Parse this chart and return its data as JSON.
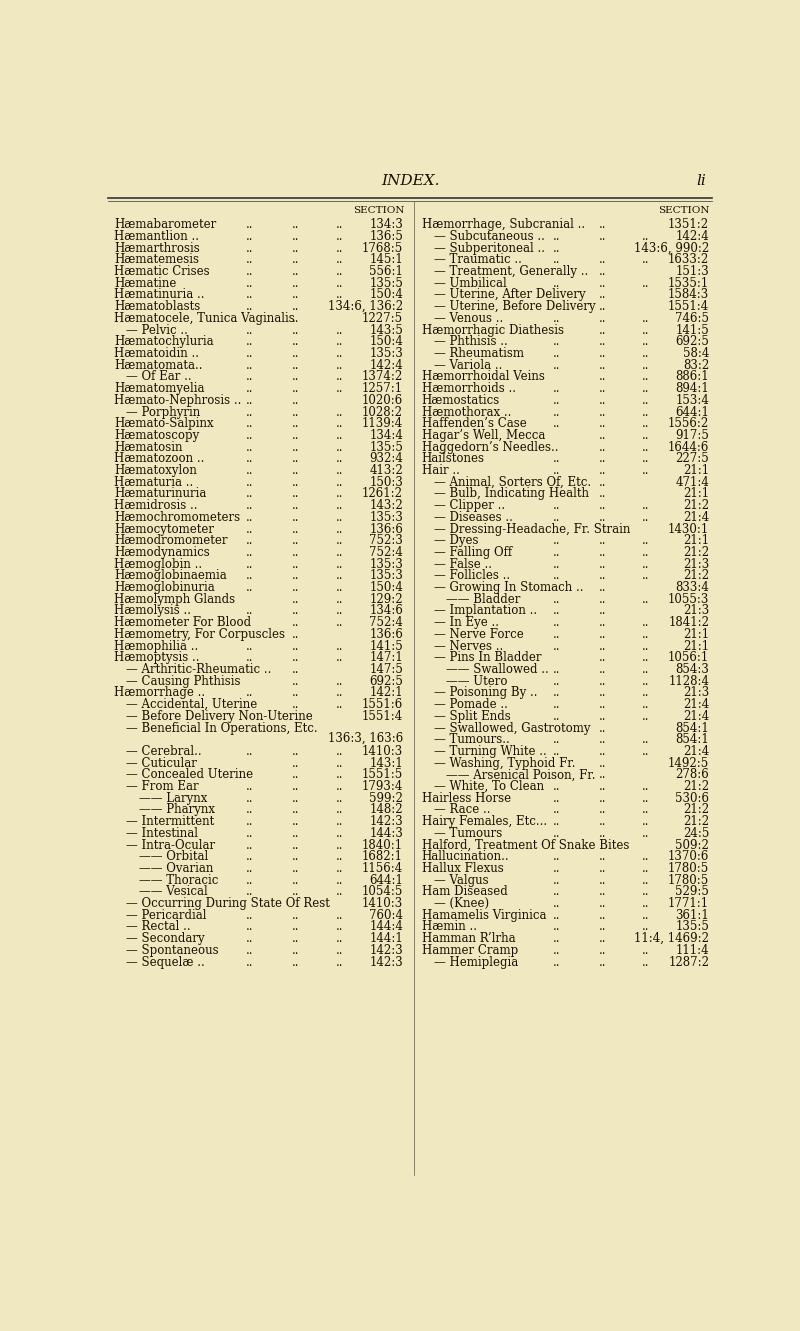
{
  "bg_color": "#f0e8c0",
  "text_color": "#1a1000",
  "title": "INDEX.",
  "page_num": "li",
  "section_header": "SECTION",
  "left_entries": [
    {
      "label": "Hæmabarometer",
      "dots": [
        1,
        2,
        3
      ],
      "page": "134:3",
      "indent": 0
    },
    {
      "label": "Hæmantlion ..",
      "dots": [
        1,
        2,
        3
      ],
      "page": "136:5",
      "indent": 0
    },
    {
      "label": "Hæmarthrosis",
      "dots": [
        1,
        2,
        3
      ],
      "page": "1768:5",
      "indent": 0
    },
    {
      "label": "Hæmatemesis",
      "dots": [
        1,
        2,
        3
      ],
      "page": "145:1",
      "indent": 0
    },
    {
      "label": "Hæmatic Crises",
      "dots": [
        1,
        2,
        3
      ],
      "page": "556:1",
      "indent": 0
    },
    {
      "label": "Hæmatine",
      "dots": [
        1,
        2,
        3
      ],
      "page": "135:5",
      "indent": 0
    },
    {
      "label": "Hæmatinuria ..",
      "dots": [
        1,
        2,
        3
      ],
      "page": "150:4",
      "indent": 0
    },
    {
      "label": "Hæmatoblasts",
      "dots": [
        1,
        2
      ],
      "page": "134:6, 136:2",
      "indent": 0
    },
    {
      "label": "Hæmatocele, Tunica Vaginalis",
      "dots": [
        2
      ],
      "page": "1227:5",
      "indent": 0
    },
    {
      "label": "— Pelvic ..",
      "dots": [
        1,
        2,
        3
      ],
      "page": "143:5",
      "indent": 1
    },
    {
      "label": "Hæmatochyluria",
      "dots": [
        1,
        2,
        3
      ],
      "page": "150:4",
      "indent": 0
    },
    {
      "label": "Hæmatoidin ..",
      "dots": [
        1,
        2,
        3
      ],
      "page": "135:3",
      "indent": 0
    },
    {
      "label": "Hæmatomata..",
      "dots": [
        1,
        2,
        3
      ],
      "page": "142:4",
      "indent": 0
    },
    {
      "label": "— Of Ear ..",
      "dots": [
        1,
        2,
        3
      ],
      "page": "1374:2",
      "indent": 1
    },
    {
      "label": "Hæmatomyelia",
      "dots": [
        1,
        2,
        3
      ],
      "page": "1257:1",
      "indent": 0
    },
    {
      "label": "Hæmato-Nephrosis ..",
      "dots": [
        1,
        2
      ],
      "page": "1020:6",
      "indent": 0
    },
    {
      "label": "— Porphyrin",
      "dots": [
        1,
        2,
        3
      ],
      "page": "1028:2",
      "indent": 1
    },
    {
      "label": "Hæmato-Salpinx",
      "dots": [
        1,
        2,
        3
      ],
      "page": "1139:4",
      "indent": 0
    },
    {
      "label": "Hæmatoscopy",
      "dots": [
        1,
        2,
        3
      ],
      "page": "134:4",
      "indent": 0
    },
    {
      "label": "Hæmatosin",
      "dots": [
        1,
        2,
        3
      ],
      "page": "135:5",
      "indent": 0
    },
    {
      "label": "Hæmatozoon ..",
      "dots": [
        1,
        2,
        3
      ],
      "page": "932:4",
      "indent": 0
    },
    {
      "label": "Hæmatoxylon",
      "dots": [
        1,
        2,
        3
      ],
      "page": "413:2",
      "indent": 0
    },
    {
      "label": "Hæmaturia ..",
      "dots": [
        1,
        2,
        3
      ],
      "page": "150:3",
      "indent": 0
    },
    {
      "label": "Hæmaturinuria",
      "dots": [
        1,
        2,
        3
      ],
      "page": "1261:2",
      "indent": 0
    },
    {
      "label": "Hæmidrosis ..",
      "dots": [
        1,
        2,
        3
      ],
      "page": "143:2",
      "indent": 0
    },
    {
      "label": "Hæmochromometers",
      "dots": [
        1,
        2,
        3
      ],
      "page": "135:3",
      "indent": 0
    },
    {
      "label": "Hæmocytometer",
      "dots": [
        1,
        2,
        3
      ],
      "page": "136:6",
      "indent": 0
    },
    {
      "label": "Hæmodromometer",
      "dots": [
        1,
        2,
        3
      ],
      "page": "752:3",
      "indent": 0
    },
    {
      "label": "Hæmodynamics",
      "dots": [
        1,
        2,
        3
      ],
      "page": "752:4",
      "indent": 0
    },
    {
      "label": "Hæmoglobin ..",
      "dots": [
        1,
        2,
        3
      ],
      "page": "135:3",
      "indent": 0
    },
    {
      "label": "Hæmoglobinaemia",
      "dots": [
        1,
        2,
        3
      ],
      "page": "135:3",
      "indent": 0
    },
    {
      "label": "Hæmoglobinuria",
      "dots": [
        1,
        2,
        3
      ],
      "page": "150:4",
      "indent": 0
    },
    {
      "label": "Hæmolymph Glands",
      "dots": [
        2,
        3
      ],
      "page": "129:2",
      "indent": 0
    },
    {
      "label": "Hæmolysis ..",
      "dots": [
        1,
        2,
        3
      ],
      "page": "134:6",
      "indent": 0
    },
    {
      "label": "Hæmometer For Blood",
      "dots": [
        2,
        3
      ],
      "page": "752:4",
      "indent": 0
    },
    {
      "label": "Hæmometry, For Corpuscles",
      "dots": [
        2
      ],
      "page": "136:6",
      "indent": 0
    },
    {
      "label": "Hæmophilia ..",
      "dots": [
        1,
        2,
        3
      ],
      "page": "141:5",
      "indent": 0
    },
    {
      "label": "Hæmoptysis ..",
      "dots": [
        1,
        2,
        3
      ],
      "page": "147:1",
      "indent": 0
    },
    {
      "label": "— Arthritic-Rheumatic ..",
      "dots": [
        2
      ],
      "page": "147:5",
      "indent": 1
    },
    {
      "label": "— Causing Phthisis",
      "dots": [
        2,
        3
      ],
      "page": "692:5",
      "indent": 1
    },
    {
      "label": "Hæmorrhage ..",
      "dots": [
        1,
        2,
        3
      ],
      "page": "142:1",
      "indent": 0
    },
    {
      "label": "— Accidental, Uterine",
      "dots": [
        2,
        3
      ],
      "page": "1551:6",
      "indent": 1
    },
    {
      "label": "— Before Delivery Non-Uterine",
      "dots": [],
      "page": "1551:4",
      "indent": 1
    },
    {
      "label": "— Beneficial In Operations, Etc.",
      "dots": [],
      "page": "136:3, 163:6",
      "indent": 1,
      "page_newline": true
    },
    {
      "label": "— Cerebral..",
      "dots": [
        1,
        2,
        3
      ],
      "page": "1410:3",
      "indent": 1
    },
    {
      "label": "— Cuticular",
      "dots": [
        2,
        3
      ],
      "page": "143:1",
      "indent": 1
    },
    {
      "label": "— Concealed Uterine",
      "dots": [
        2,
        3
      ],
      "page": "1551:5",
      "indent": 1
    },
    {
      "label": "— From Ear",
      "dots": [
        1,
        2,
        3
      ],
      "page": "1793:4",
      "indent": 1
    },
    {
      "label": "—— Larynx",
      "dots": [
        1,
        2,
        3
      ],
      "page": "599:2",
      "indent": 2
    },
    {
      "label": "—— Pharynx",
      "dots": [
        1,
        2,
        3
      ],
      "page": "148:2",
      "indent": 2
    },
    {
      "label": "— Intermittent",
      "dots": [
        1,
        2,
        3
      ],
      "page": "142:3",
      "indent": 1
    },
    {
      "label": "— Intestinal",
      "dots": [
        1,
        2,
        3
      ],
      "page": "144:3",
      "indent": 1
    },
    {
      "label": "— Intra-Ocular",
      "dots": [
        1,
        2,
        3
      ],
      "page": "1840:1",
      "indent": 1
    },
    {
      "label": "—— Orbital",
      "dots": [
        1,
        2,
        3
      ],
      "page": "1682:1",
      "indent": 2
    },
    {
      "label": "—— Ovarian",
      "dots": [
        1,
        2,
        3
      ],
      "page": "1156:4",
      "indent": 2
    },
    {
      "label": "—— Thoracic",
      "dots": [
        1,
        2,
        3
      ],
      "page": "644:1",
      "indent": 2
    },
    {
      "label": "—— Vesical",
      "dots": [
        1,
        2,
        3
      ],
      "page": "1054:5",
      "indent": 2
    },
    {
      "label": "— Occurring During State Of Rest",
      "dots": [],
      "page": "1410:3",
      "indent": 1
    },
    {
      "label": "— Pericardial",
      "dots": [
        1,
        2,
        3
      ],
      "page": "760:4",
      "indent": 1
    },
    {
      "label": "— Rectal ..",
      "dots": [
        1,
        2,
        3
      ],
      "page": "144:4",
      "indent": 1
    },
    {
      "label": "— Secondary",
      "dots": [
        1,
        2,
        3
      ],
      "page": "144:1",
      "indent": 1
    },
    {
      "label": "— Spontaneous",
      "dots": [
        1,
        2,
        3
      ],
      "page": "142:3",
      "indent": 1
    },
    {
      "label": "— Sequelæ ..",
      "dots": [
        1,
        2,
        3
      ],
      "page": "142:3",
      "indent": 1
    }
  ],
  "right_entries": [
    {
      "label": "Hæmorrhage, Subcranial ..",
      "dots": [
        2
      ],
      "page": "1351:2",
      "indent": 0
    },
    {
      "label": "— Subcutaneous ..",
      "dots": [
        1,
        2,
        3
      ],
      "page": "142:4",
      "indent": 1
    },
    {
      "label": "— Subperitoneal ..",
      "dots": [
        1
      ],
      "page": "143:6, 990:2",
      "indent": 1
    },
    {
      "label": "— Traumatic ..",
      "dots": [
        1,
        2,
        3
      ],
      "page": "1633:2",
      "indent": 1
    },
    {
      "label": "— Treatment, Generally ..",
      "dots": [
        2
      ],
      "page": "151:3",
      "indent": 1
    },
    {
      "label": "— Umbilical",
      "dots": [
        1,
        2,
        3
      ],
      "page": "1535:1",
      "indent": 1
    },
    {
      "label": "— Uterine, After Delivery",
      "dots": [
        2
      ],
      "page": "1584:3",
      "indent": 1
    },
    {
      "label": "— Uterine, Before Delivery",
      "dots": [
        2
      ],
      "page": "1551:4",
      "indent": 1
    },
    {
      "label": "— Venous ..",
      "dots": [
        1,
        2,
        3
      ],
      "page": "746:5",
      "indent": 1
    },
    {
      "label": "Hæmorrhagic Diathesis",
      "dots": [
        2,
        3
      ],
      "page": "141:5",
      "indent": 0
    },
    {
      "label": "— Phthisis ..",
      "dots": [
        1,
        2,
        3
      ],
      "page": "692:5",
      "indent": 1
    },
    {
      "label": "— Rheumatism",
      "dots": [
        1,
        2,
        3
      ],
      "page": "58:4",
      "indent": 1
    },
    {
      "label": "— Variola ..",
      "dots": [
        1,
        2,
        3
      ],
      "page": "83:2",
      "indent": 1
    },
    {
      "label": "Hæmorrhoidal Veins",
      "dots": [
        2,
        3
      ],
      "page": "886:1",
      "indent": 0
    },
    {
      "label": "Hæmorrhoids ..",
      "dots": [
        1,
        2,
        3
      ],
      "page": "894:1",
      "indent": 0
    },
    {
      "label": "Hæmostatics",
      "dots": [
        1,
        2,
        3
      ],
      "page": "153:4",
      "indent": 0
    },
    {
      "label": "Hæmothorax ..",
      "dots": [
        1,
        2,
        3
      ],
      "page": "644:1",
      "indent": 0
    },
    {
      "label": "Haffenden’s Case",
      "dots": [
        1,
        2,
        3
      ],
      "page": "1556:2",
      "indent": 0
    },
    {
      "label": "Hagar’s Well, Mecca",
      "dots": [
        2,
        3
      ],
      "page": "917:5",
      "indent": 0
    },
    {
      "label": "Haggedorn’s Needles..",
      "dots": [
        2,
        3
      ],
      "page": "1644:6",
      "indent": 0
    },
    {
      "label": "Hailstones",
      "dots": [
        1,
        2,
        3
      ],
      "page": "227:5",
      "indent": 0
    },
    {
      "label": "Hair ..",
      "dots": [
        1,
        2,
        3
      ],
      "page": "21:1",
      "indent": 0
    },
    {
      "label": "— Animal, Sorters Of, Etc.",
      "dots": [
        2
      ],
      "page": "471:4",
      "indent": 1
    },
    {
      "label": "— Bulb, Indicating Health",
      "dots": [
        2
      ],
      "page": "21:1",
      "indent": 1
    },
    {
      "label": "— Clipper ..",
      "dots": [
        1,
        2,
        3
      ],
      "page": "21:2",
      "indent": 1
    },
    {
      "label": "— Diseases ..",
      "dots": [
        1,
        2,
        3
      ],
      "page": "21:4",
      "indent": 1
    },
    {
      "label": "— Dressing-Headache, Fr. Strain",
      "dots": [],
      "page": "1430:1",
      "indent": 1
    },
    {
      "label": "— Dyes",
      "dots": [
        1,
        2,
        3
      ],
      "page": "21:1",
      "indent": 1
    },
    {
      "label": "— Falling Off",
      "dots": [
        1,
        2,
        3
      ],
      "page": "21:2",
      "indent": 1
    },
    {
      "label": "— False ..",
      "dots": [
        1,
        2,
        3
      ],
      "page": "21:3",
      "indent": 1
    },
    {
      "label": "— Follicles ..",
      "dots": [
        1,
        2,
        3
      ],
      "page": "21:2",
      "indent": 1
    },
    {
      "label": "— Growing In Stomach ..",
      "dots": [
        2
      ],
      "page": "833:4",
      "indent": 1
    },
    {
      "label": "—— Bladder",
      "dots": [
        1,
        2,
        3
      ],
      "page": "1055:3",
      "indent": 2
    },
    {
      "label": "— Implantation ..",
      "dots": [
        1,
        2
      ],
      "page": "21:3",
      "indent": 1
    },
    {
      "label": "— In Eye ..",
      "dots": [
        1,
        2,
        3
      ],
      "page": "1841:2",
      "indent": 1
    },
    {
      "label": "— Nerve Force",
      "dots": [
        1,
        2,
        3
      ],
      "page": "21:1",
      "indent": 1
    },
    {
      "label": "— Nerves ..",
      "dots": [
        1,
        2,
        3
      ],
      "page": "21:1",
      "indent": 1
    },
    {
      "label": "— Pins In Bladder",
      "dots": [
        2,
        3
      ],
      "page": "1056:1",
      "indent": 1
    },
    {
      "label": "—— Swallowed ..",
      "dots": [
        1,
        2,
        3
      ],
      "page": "854:3",
      "indent": 2
    },
    {
      "label": "—— Utero",
      "dots": [
        1,
        2,
        3
      ],
      "page": "1128:4",
      "indent": 2
    },
    {
      "label": "— Poisoning By ..",
      "dots": [
        1,
        2,
        3
      ],
      "page": "21:3",
      "indent": 1
    },
    {
      "label": "— Pomade ..",
      "dots": [
        1,
        2,
        3
      ],
      "page": "21:4",
      "indent": 1
    },
    {
      "label": "— Split Ends",
      "dots": [
        1,
        2,
        3
      ],
      "page": "21:4",
      "indent": 1
    },
    {
      "label": "— Swallowed, Gastrotomy",
      "dots": [
        2
      ],
      "page": "854:1",
      "indent": 1
    },
    {
      "label": "— Tumours..",
      "dots": [
        1,
        2,
        3
      ],
      "page": "854:1",
      "indent": 1
    },
    {
      "label": "— Turning White ..",
      "dots": [
        1,
        2,
        3
      ],
      "page": "21:4",
      "indent": 1
    },
    {
      "label": "— Washing, Typhoid Fr.",
      "dots": [
        2
      ],
      "page": "1492:5",
      "indent": 1
    },
    {
      "label": "—— Arsenical Poison, Fr.",
      "dots": [
        2
      ],
      "page": "278:6",
      "indent": 2
    },
    {
      "label": "— White, To Clean",
      "dots": [
        1,
        2,
        3
      ],
      "page": "21:2",
      "indent": 1
    },
    {
      "label": "Hairless Horse",
      "dots": [
        1,
        2,
        3
      ],
      "page": "530:6",
      "indent": 0
    },
    {
      "label": "— Race ..",
      "dots": [
        1,
        2,
        3
      ],
      "page": "21:2",
      "indent": 1
    },
    {
      "label": "Hairy Females, Etc...",
      "dots": [
        1,
        2,
        3
      ],
      "page": "21:2",
      "indent": 0
    },
    {
      "label": "— Tumours",
      "dots": [
        1,
        2,
        3
      ],
      "page": "24:5",
      "indent": 1
    },
    {
      "label": "Halford, Treatment Of Snake Bites",
      "dots": [],
      "page": "509:2",
      "indent": 0
    },
    {
      "label": "Hallucination..",
      "dots": [
        1,
        2,
        3
      ],
      "page": "1370:6",
      "indent": 0
    },
    {
      "label": "Hallux Flexus",
      "dots": [
        1,
        2,
        3
      ],
      "page": "1780:5",
      "indent": 0
    },
    {
      "label": "— Valgus",
      "dots": [
        1,
        2,
        3
      ],
      "page": "1780:5",
      "indent": 1
    },
    {
      "label": "Ham Diseased",
      "dots": [
        1,
        2,
        3
      ],
      "page": "529:5",
      "indent": 0
    },
    {
      "label": "— (Knee)",
      "dots": [
        1,
        2,
        3
      ],
      "page": "1771:1",
      "indent": 1
    },
    {
      "label": "Hamamelis Virginica",
      "dots": [
        1,
        2,
        3
      ],
      "page": "361:1",
      "indent": 0
    },
    {
      "label": "Hæmin ..",
      "dots": [
        1,
        2,
        3
      ],
      "page": "135:5",
      "indent": 0
    },
    {
      "label": "Hamman R’lrha",
      "dots": [
        1,
        2
      ],
      "page": "11:4, 1469:2",
      "indent": 0
    },
    {
      "label": "Hammer Cramp",
      "dots": [
        1,
        2,
        3
      ],
      "page": "111:4",
      "indent": 0
    },
    {
      "label": "— Hemiplegia",
      "dots": [
        1,
        2,
        3
      ],
      "page": "1287:2",
      "indent": 1
    }
  ]
}
